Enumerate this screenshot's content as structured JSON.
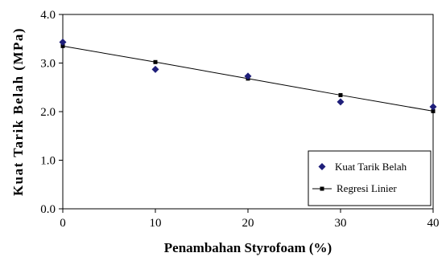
{
  "chart_data": {
    "type": "scatter",
    "title": "",
    "xlabel": "Penambahan Styrofoam (%)",
    "ylabel": "Kuat Tarik Belah (MPa)",
    "xlim": [
      0,
      40
    ],
    "ylim": [
      0.0,
      4.0
    ],
    "x_ticks": [
      "0",
      "10",
      "20",
      "30",
      "40"
    ],
    "y_ticks": [
      "0.0",
      "1.0",
      "2.0",
      "3.0",
      "4.0"
    ],
    "grid": false,
    "legend_position": "bottom-right",
    "series": [
      {
        "name": "Kuat Tarik Belah",
        "marker": "diamond",
        "color": "#1f1f7a",
        "x": [
          0,
          10,
          20,
          30,
          40
        ],
        "y": [
          3.43,
          2.87,
          2.73,
          2.2,
          2.1
        ]
      },
      {
        "name": "Regresi Linier",
        "marker": "square",
        "line": true,
        "color": "#000000",
        "x": [
          0,
          10,
          20,
          30,
          40
        ],
        "y": [
          3.35,
          3.02,
          2.68,
          2.34,
          2.01
        ]
      }
    ]
  }
}
